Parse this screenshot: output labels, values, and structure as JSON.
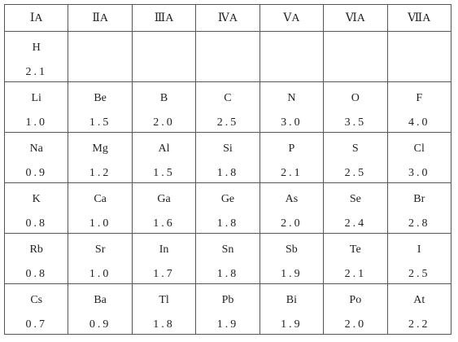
{
  "table": {
    "header": [
      "ⅠA",
      "ⅡA",
      "ⅢA",
      "ⅣA",
      "ⅤA",
      "ⅥA",
      "ⅦA"
    ],
    "rows": [
      [
        {
          "symbol": "H",
          "value": "2.1"
        }
      ],
      [
        {
          "symbol": "Li",
          "value": "1.0"
        },
        {
          "symbol": "Be",
          "value": "1.5"
        },
        {
          "symbol": "B",
          "value": "2.0"
        },
        {
          "symbol": "C",
          "value": "2.5"
        },
        {
          "symbol": "N",
          "value": "3.0"
        },
        {
          "symbol": "O",
          "value": "3.5"
        },
        {
          "symbol": "F",
          "value": "4.0"
        }
      ],
      [
        {
          "symbol": "Na",
          "value": "0.9"
        },
        {
          "symbol": "Mg",
          "value": "1.2"
        },
        {
          "symbol": "Al",
          "value": "1.5"
        },
        {
          "symbol": "Si",
          "value": "1.8"
        },
        {
          "symbol": "P",
          "value": "2.1"
        },
        {
          "symbol": "S",
          "value": "2.5"
        },
        {
          "symbol": "Cl",
          "value": "3.0"
        }
      ],
      [
        {
          "symbol": "K",
          "value": "0.8"
        },
        {
          "symbol": "Ca",
          "value": "1.0"
        },
        {
          "symbol": "Ga",
          "value": "1.6"
        },
        {
          "symbol": "Ge",
          "value": "1.8"
        },
        {
          "symbol": "As",
          "value": "2.0"
        },
        {
          "symbol": "Se",
          "value": "2.4"
        },
        {
          "symbol": "Br",
          "value": "2.8"
        }
      ],
      [
        {
          "symbol": "Rb",
          "value": "0.8"
        },
        {
          "symbol": "Sr",
          "value": "1.0"
        },
        {
          "symbol": "In",
          "value": "1.7"
        },
        {
          "symbol": "Sn",
          "value": "1.8"
        },
        {
          "symbol": "Sb",
          "value": "1.9"
        },
        {
          "symbol": "Te",
          "value": "2.1"
        },
        {
          "symbol": "I",
          "value": "2.5"
        }
      ],
      [
        {
          "symbol": "Cs",
          "value": "0.7"
        },
        {
          "symbol": "Ba",
          "value": "0.9"
        },
        {
          "symbol": "Tl",
          "value": "1.8"
        },
        {
          "symbol": "Pb",
          "value": "1.9"
        },
        {
          "symbol": "Bi",
          "value": "1.9"
        },
        {
          "symbol": "Po",
          "value": "2.0"
        },
        {
          "symbol": "At",
          "value": "2.2"
        }
      ]
    ]
  }
}
